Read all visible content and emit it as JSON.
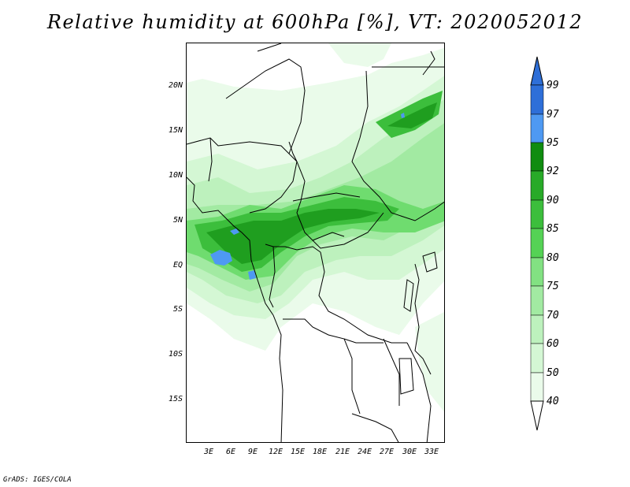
{
  "title": "Relative humidity at 600hPa [%], VT: 2020052012",
  "credit": "GrADS: IGES/COLA",
  "lat_labels": [
    "20N",
    "15N",
    "10N",
    "5N",
    "EQ",
    "5S",
    "10S",
    "15S"
  ],
  "lat_values": [
    20,
    15,
    10,
    5,
    0,
    -5,
    -10,
    -15
  ],
  "lon_labels": [
    "3E",
    "6E",
    "9E",
    "12E",
    "15E",
    "18E",
    "21E",
    "24E",
    "27E",
    "30E",
    "33E"
  ],
  "lon_values": [
    3,
    6,
    9,
    12,
    15,
    18,
    21,
    24,
    27,
    30,
    33
  ],
  "extent": {
    "lon_min": 0,
    "lon_max": 34,
    "lat_min": -19.5,
    "lat_max": 25
  },
  "legend": {
    "levels": [
      "99",
      "97",
      "95",
      "92",
      "90",
      "85",
      "80",
      "75",
      "70",
      "60",
      "50",
      "40"
    ],
    "colors": [
      "#2e6fd8",
      "#2e6fd8",
      "#4e99f2",
      "#108c10",
      "#28aa28",
      "#3cbe3c",
      "#55d255",
      "#82e182",
      "#a2eaa2",
      "#bdf1bd",
      "#d4f7d4",
      "#eafbea",
      "#ffffff"
    ]
  }
}
